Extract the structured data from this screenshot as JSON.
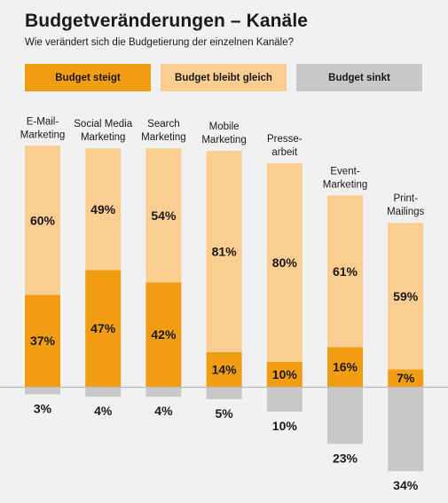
{
  "title": "Budgetveränderungen – Kanäle",
  "subtitle": "Wie verändert sich die Budgetierung der einzelnen Kanäle?",
  "colors": {
    "steigt": "#f19d14",
    "gleich": "#fbcd91",
    "sinkt": "#c8c8c8",
    "background": "#f1f1f1",
    "baseline": "#bdbdbd"
  },
  "legend": [
    {
      "key": "steigt",
      "label": "Budget steigt",
      "color": "#f19d14"
    },
    {
      "key": "gleich",
      "label": "Budget bleibt gleich",
      "color": "#fbcd91"
    },
    {
      "key": "sinkt",
      "label": "Budget sinkt",
      "color": "#c8c8c8"
    }
  ],
  "chart_data": {
    "type": "bar",
    "stacked": true,
    "categories": [
      [
        "E-Mail-",
        "Marketing"
      ],
      [
        "Social Media",
        "Marketing"
      ],
      [
        "Search",
        "Marketing"
      ],
      [
        "Mobile",
        "Marketing"
      ],
      [
        "Presse-",
        "arbeit"
      ],
      [
        "Event-",
        "Marketing"
      ],
      [
        "Print-",
        "Mailings"
      ]
    ],
    "series": [
      {
        "name": "Budget steigt",
        "values": [
          37,
          47,
          42,
          14,
          10,
          16,
          7
        ],
        "labels": [
          "37%",
          "47%",
          "42%",
          "14%",
          "10%",
          "16%",
          "7%"
        ]
      },
      {
        "name": "Budget bleibt gleich",
        "values": [
          60,
          49,
          54,
          81,
          80,
          61,
          59
        ],
        "labels": [
          "60%",
          "49%",
          "54%",
          "81%",
          "80%",
          "61%",
          "59%"
        ]
      },
      {
        "name": "Budget sinkt",
        "values": [
          3,
          4,
          4,
          5,
          10,
          23,
          34
        ],
        "labels": [
          "3%",
          "4%",
          "4%",
          "5%",
          "10%",
          "23%",
          "34%"
        ]
      }
    ],
    "baseline": 0,
    "negative_series": "Budget sinkt",
    "legend_position": "top",
    "grid": false
  }
}
